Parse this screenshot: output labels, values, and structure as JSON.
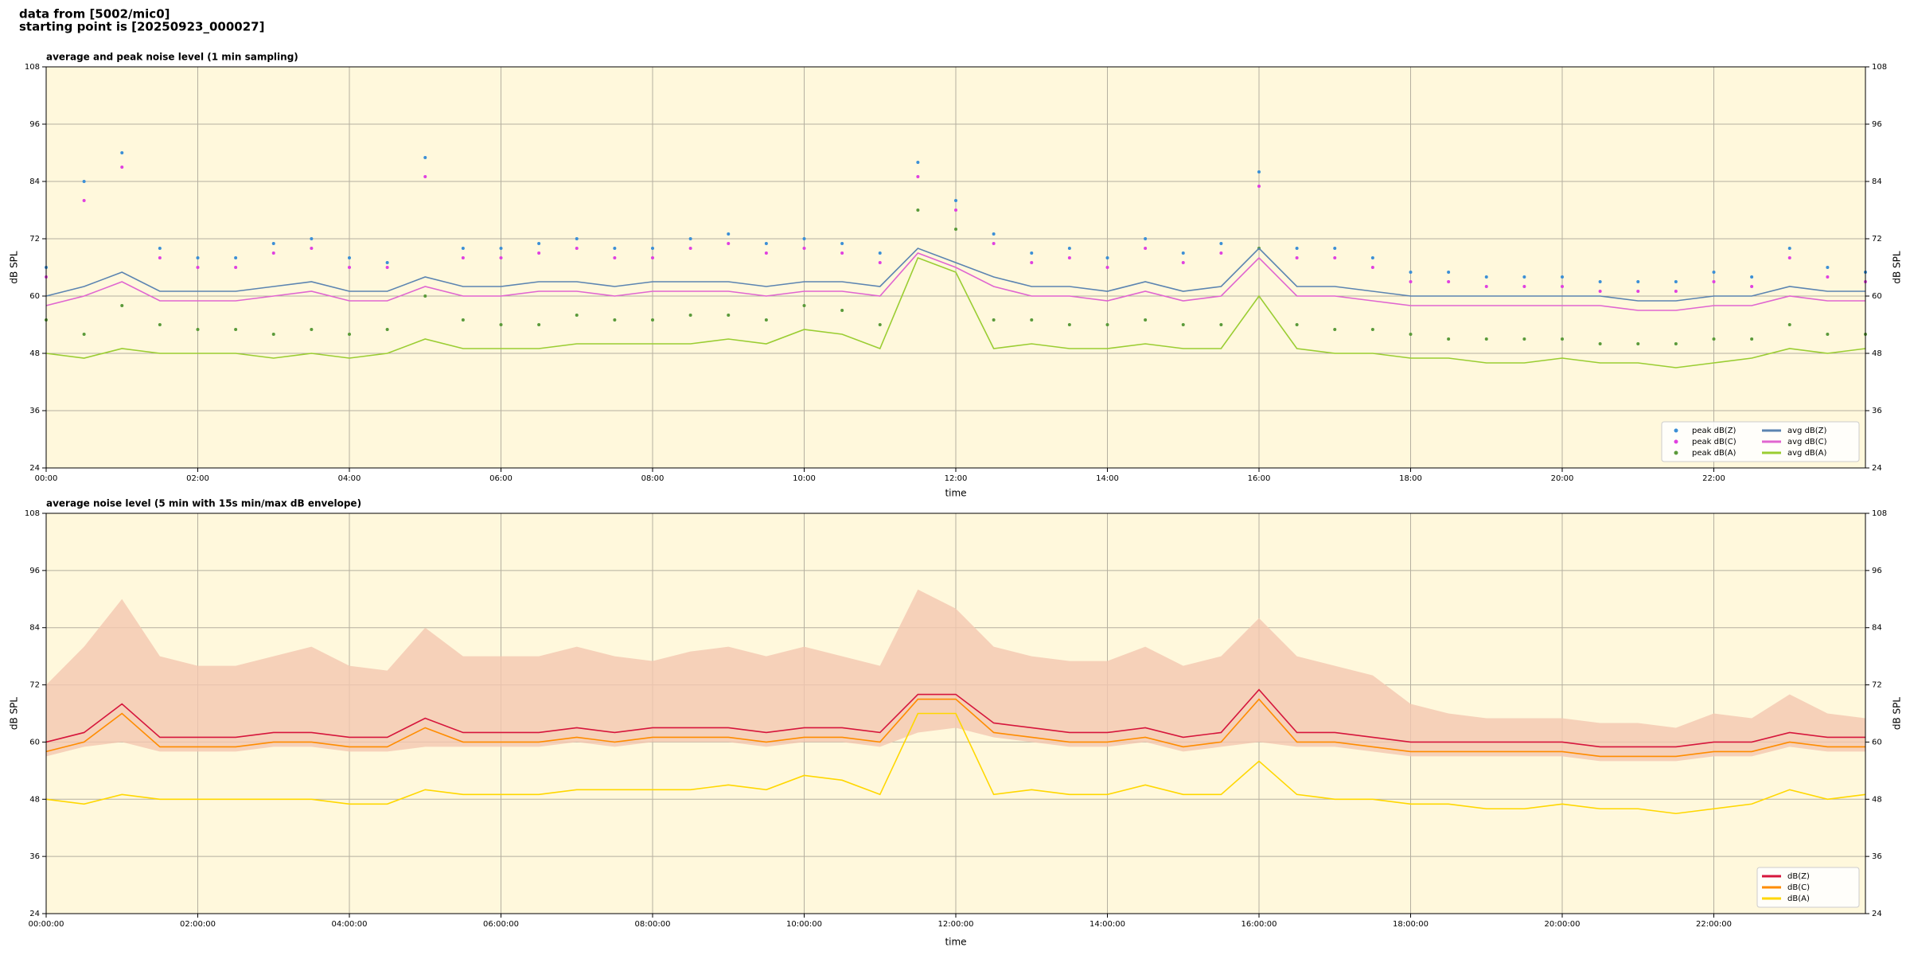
{
  "header": {
    "line1": "data from [5002/mic0]",
    "line2": "starting point is [20250923_000027]"
  },
  "chart_data": [
    {
      "type": "line",
      "title": "average and peak noise level (1 min sampling)",
      "xlabel": "time",
      "ylabel": "dB SPL",
      "y2label": "dB SPL",
      "background": "#fff8dc",
      "grid": true,
      "legend": "lower right",
      "xlim": [
        0,
        24
      ],
      "ylim": [
        24,
        108
      ],
      "y2lim": [
        24,
        108
      ],
      "xticks": [
        {
          "value": 0,
          "label": "00:00"
        },
        {
          "value": 2,
          "label": "02:00"
        },
        {
          "value": 4,
          "label": "04:00"
        },
        {
          "value": 6,
          "label": "06:00"
        },
        {
          "value": 8,
          "label": "08:00"
        },
        {
          "value": 10,
          "label": "10:00"
        },
        {
          "value": 12,
          "label": "12:00"
        },
        {
          "value": 14,
          "label": "14:00"
        },
        {
          "value": 16,
          "label": "16:00"
        },
        {
          "value": 18,
          "label": "18:00"
        },
        {
          "value": 20,
          "label": "20:00"
        },
        {
          "value": 22,
          "label": "22:00"
        }
      ],
      "yticks": [
        24,
        36,
        48,
        60,
        72,
        84,
        96,
        108
      ],
      "y2ticks": [
        24,
        36,
        48,
        60,
        72,
        84,
        96,
        108
      ],
      "x": [
        0,
        0.5,
        1,
        1.5,
        2,
        2.5,
        3,
        3.5,
        4,
        4.5,
        5,
        5.5,
        6,
        6.5,
        7,
        7.5,
        8,
        8.5,
        9,
        9.5,
        10,
        10.5,
        11,
        11.5,
        12,
        12.5,
        13,
        13.5,
        14,
        14.5,
        15,
        15.5,
        16,
        16.5,
        17,
        17.5,
        18,
        18.5,
        19,
        19.5,
        20,
        20.5,
        21,
        21.5,
        22,
        22.5,
        23,
        23.5,
        24
      ],
      "series": [
        {
          "name": "peak dB(Z)",
          "type": "scatter",
          "color": "#3b8fd6",
          "values": [
            66,
            84,
            90,
            70,
            68,
            68,
            71,
            72,
            68,
            67,
            89,
            70,
            70,
            71,
            72,
            70,
            70,
            72,
            73,
            71,
            72,
            71,
            69,
            88,
            80,
            73,
            69,
            70,
            68,
            72,
            69,
            71,
            86,
            70,
            70,
            68,
            65,
            65,
            64,
            64,
            64,
            63,
            63,
            63,
            65,
            64,
            70,
            66,
            65
          ]
        },
        {
          "name": "peak dB(C)",
          "type": "scatter",
          "color": "#e040e0",
          "values": [
            64,
            80,
            87,
            68,
            66,
            66,
            69,
            70,
            66,
            66,
            85,
            68,
            68,
            69,
            70,
            68,
            68,
            70,
            71,
            69,
            70,
            69,
            67,
            85,
            78,
            71,
            67,
            68,
            66,
            70,
            67,
            69,
            83,
            68,
            68,
            66,
            63,
            63,
            62,
            62,
            62,
            61,
            61,
            61,
            63,
            62,
            68,
            64,
            63
          ]
        },
        {
          "name": "peak dB(A)",
          "type": "scatter",
          "color": "#5a9a3a",
          "values": [
            55,
            52,
            58,
            54,
            53,
            53,
            52,
            53,
            52,
            53,
            60,
            55,
            54,
            54,
            56,
            55,
            55,
            56,
            56,
            55,
            58,
            57,
            54,
            78,
            74,
            55,
            55,
            54,
            54,
            55,
            54,
            54,
            70,
            54,
            53,
            53,
            52,
            51,
            51,
            51,
            51,
            50,
            50,
            50,
            51,
            51,
            54,
            52,
            52
          ]
        },
        {
          "name": "avg dB(Z)",
          "type": "line",
          "color": "#5b84b1",
          "values": [
            60,
            62,
            65,
            61,
            61,
            61,
            62,
            63,
            61,
            61,
            64,
            62,
            62,
            63,
            63,
            62,
            63,
            63,
            63,
            62,
            63,
            63,
            62,
            70,
            67,
            64,
            62,
            62,
            61,
            63,
            61,
            62,
            70,
            62,
            62,
            61,
            60,
            60,
            60,
            60,
            60,
            60,
            59,
            59,
            60,
            60,
            62,
            61,
            61
          ]
        },
        {
          "name": "avg dB(C)",
          "type": "line",
          "color": "#e066d0",
          "values": [
            58,
            60,
            63,
            59,
            59,
            59,
            60,
            61,
            59,
            59,
            62,
            60,
            60,
            61,
            61,
            60,
            61,
            61,
            61,
            60,
            61,
            61,
            60,
            69,
            66,
            62,
            60,
            60,
            59,
            61,
            59,
            60,
            68,
            60,
            60,
            59,
            58,
            58,
            58,
            58,
            58,
            58,
            57,
            57,
            58,
            58,
            60,
            59,
            59
          ]
        },
        {
          "name": "avg dB(A)",
          "type": "line",
          "color": "#9acd32",
          "values": [
            48,
            47,
            49,
            48,
            48,
            48,
            47,
            48,
            47,
            48,
            51,
            49,
            49,
            49,
            50,
            50,
            50,
            50,
            51,
            50,
            53,
            52,
            49,
            68,
            65,
            49,
            50,
            49,
            49,
            50,
            49,
            49,
            60,
            49,
            48,
            48,
            47,
            47,
            46,
            46,
            47,
            46,
            46,
            45,
            46,
            47,
            49,
            48,
            49
          ]
        }
      ]
    },
    {
      "type": "line",
      "title": "average noise level (5 min with 15s min/max dB envelope)",
      "xlabel": "time",
      "ylabel": "dB SPL",
      "y2label": "dB SPL",
      "background": "#fff8dc",
      "grid": true,
      "legend": "lower right",
      "xlim": [
        0,
        24
      ],
      "ylim": [
        24,
        108
      ],
      "y2lim": [
        24,
        108
      ],
      "xticks": [
        {
          "value": 0,
          "label": "00:00:00"
        },
        {
          "value": 2,
          "label": "02:00:00"
        },
        {
          "value": 4,
          "label": "04:00:00"
        },
        {
          "value": 6,
          "label": "06:00:00"
        },
        {
          "value": 8,
          "label": "08:00:00"
        },
        {
          "value": 10,
          "label": "10:00:00"
        },
        {
          "value": 12,
          "label": "12:00:00"
        },
        {
          "value": 14,
          "label": "14:00:00"
        },
        {
          "value": 16,
          "label": "16:00:00"
        },
        {
          "value": 18,
          "label": "18:00:00"
        },
        {
          "value": 20,
          "label": "20:00:00"
        },
        {
          "value": 22,
          "label": "22:00:00"
        }
      ],
      "yticks": [
        24,
        36,
        48,
        60,
        72,
        84,
        96,
        108
      ],
      "y2ticks": [
        24,
        36,
        48,
        60,
        72,
        84,
        96,
        108
      ],
      "x": [
        0,
        0.5,
        1,
        1.5,
        2,
        2.5,
        3,
        3.5,
        4,
        4.5,
        5,
        5.5,
        6,
        6.5,
        7,
        7.5,
        8,
        8.5,
        9,
        9.5,
        10,
        10.5,
        11,
        11.5,
        12,
        12.5,
        13,
        13.5,
        14,
        14.5,
        15,
        15.5,
        16,
        16.5,
        17,
        17.5,
        18,
        18.5,
        19,
        19.5,
        20,
        20.5,
        21,
        21.5,
        22,
        22.5,
        23,
        23.5,
        24
      ],
      "envelope": {
        "color": "#f4c7b0",
        "upper": [
          72,
          80,
          90,
          78,
          76,
          76,
          78,
          80,
          76,
          75,
          84,
          78,
          78,
          78,
          80,
          78,
          77,
          79,
          80,
          78,
          80,
          78,
          76,
          92,
          88,
          80,
          78,
          77,
          77,
          80,
          76,
          78,
          86,
          78,
          76,
          74,
          68,
          66,
          65,
          65,
          65,
          64,
          64,
          63,
          66,
          65,
          70,
          66,
          65
        ],
        "lower": [
          57,
          59,
          60,
          58,
          58,
          58,
          59,
          59,
          58,
          58,
          59,
          59,
          59,
          59,
          60,
          59,
          60,
          60,
          60,
          59,
          60,
          60,
          59,
          62,
          63,
          61,
          60,
          59,
          59,
          60,
          58,
          59,
          60,
          59,
          59,
          58,
          57,
          57,
          57,
          57,
          57,
          56,
          56,
          56,
          57,
          57,
          59,
          58,
          58
        ]
      },
      "series": [
        {
          "name": "dB(Z)",
          "type": "line",
          "color": "#d6163c",
          "values": [
            60,
            62,
            68,
            61,
            61,
            61,
            62,
            62,
            61,
            61,
            65,
            62,
            62,
            62,
            63,
            62,
            63,
            63,
            63,
            62,
            63,
            63,
            62,
            70,
            70,
            64,
            63,
            62,
            62,
            63,
            61,
            62,
            71,
            62,
            62,
            61,
            60,
            60,
            60,
            60,
            60,
            59,
            59,
            59,
            60,
            60,
            62,
            61,
            61
          ]
        },
        {
          "name": "dB(C)",
          "type": "line",
          "color": "#ff8c00",
          "values": [
            58,
            60,
            66,
            59,
            59,
            59,
            60,
            60,
            59,
            59,
            63,
            60,
            60,
            60,
            61,
            60,
            61,
            61,
            61,
            60,
            61,
            61,
            60,
            69,
            69,
            62,
            61,
            60,
            60,
            61,
            59,
            60,
            69,
            60,
            60,
            59,
            58,
            58,
            58,
            58,
            58,
            57,
            57,
            57,
            58,
            58,
            60,
            59,
            59
          ]
        },
        {
          "name": "dB(A)",
          "type": "line",
          "color": "#ffd700",
          "values": [
            48,
            47,
            49,
            48,
            48,
            48,
            48,
            48,
            47,
            47,
            50,
            49,
            49,
            49,
            50,
            50,
            50,
            50,
            51,
            50,
            53,
            52,
            49,
            66,
            66,
            49,
            50,
            49,
            49,
            51,
            49,
            49,
            56,
            49,
            48,
            48,
            47,
            47,
            46,
            46,
            47,
            46,
            46,
            45,
            46,
            47,
            50,
            48,
            49
          ]
        }
      ]
    }
  ]
}
